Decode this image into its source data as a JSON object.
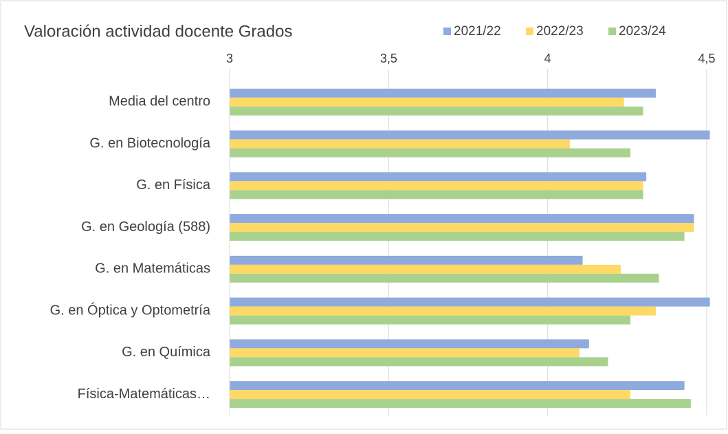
{
  "chart_data": {
    "type": "bar",
    "orientation": "horizontal",
    "title": "Valoración actividad docente Grados",
    "categories": [
      "Media del centro",
      "G. en Biotecnología",
      "G. en Física",
      "G. en Geología (588)",
      "G. en Matemáticas",
      "G. en Óptica y Optometría",
      "G. en Química",
      "Física-Matemáticas…"
    ],
    "series": [
      {
        "name": "2021/22",
        "color": "#8faadc",
        "values": [
          4.34,
          4.51,
          4.31,
          4.46,
          4.11,
          4.51,
          4.13,
          4.43
        ]
      },
      {
        "name": "2022/23",
        "color": "#ffd966",
        "values": [
          4.24,
          4.07,
          4.3,
          4.46,
          4.23,
          4.34,
          4.1,
          4.26
        ]
      },
      {
        "name": "2023/24",
        "color": "#a9d18e",
        "values": [
          4.3,
          4.26,
          4.3,
          4.43,
          4.35,
          4.26,
          4.19,
          4.45
        ]
      }
    ],
    "xlim": [
      3,
      4.5
    ],
    "xticks": [
      3,
      {
        "value": 3.5,
        "label": "3,5"
      },
      4,
      {
        "value": 4.5,
        "label": "4,5"
      }
    ],
    "grid": true,
    "legend": "top-right"
  }
}
